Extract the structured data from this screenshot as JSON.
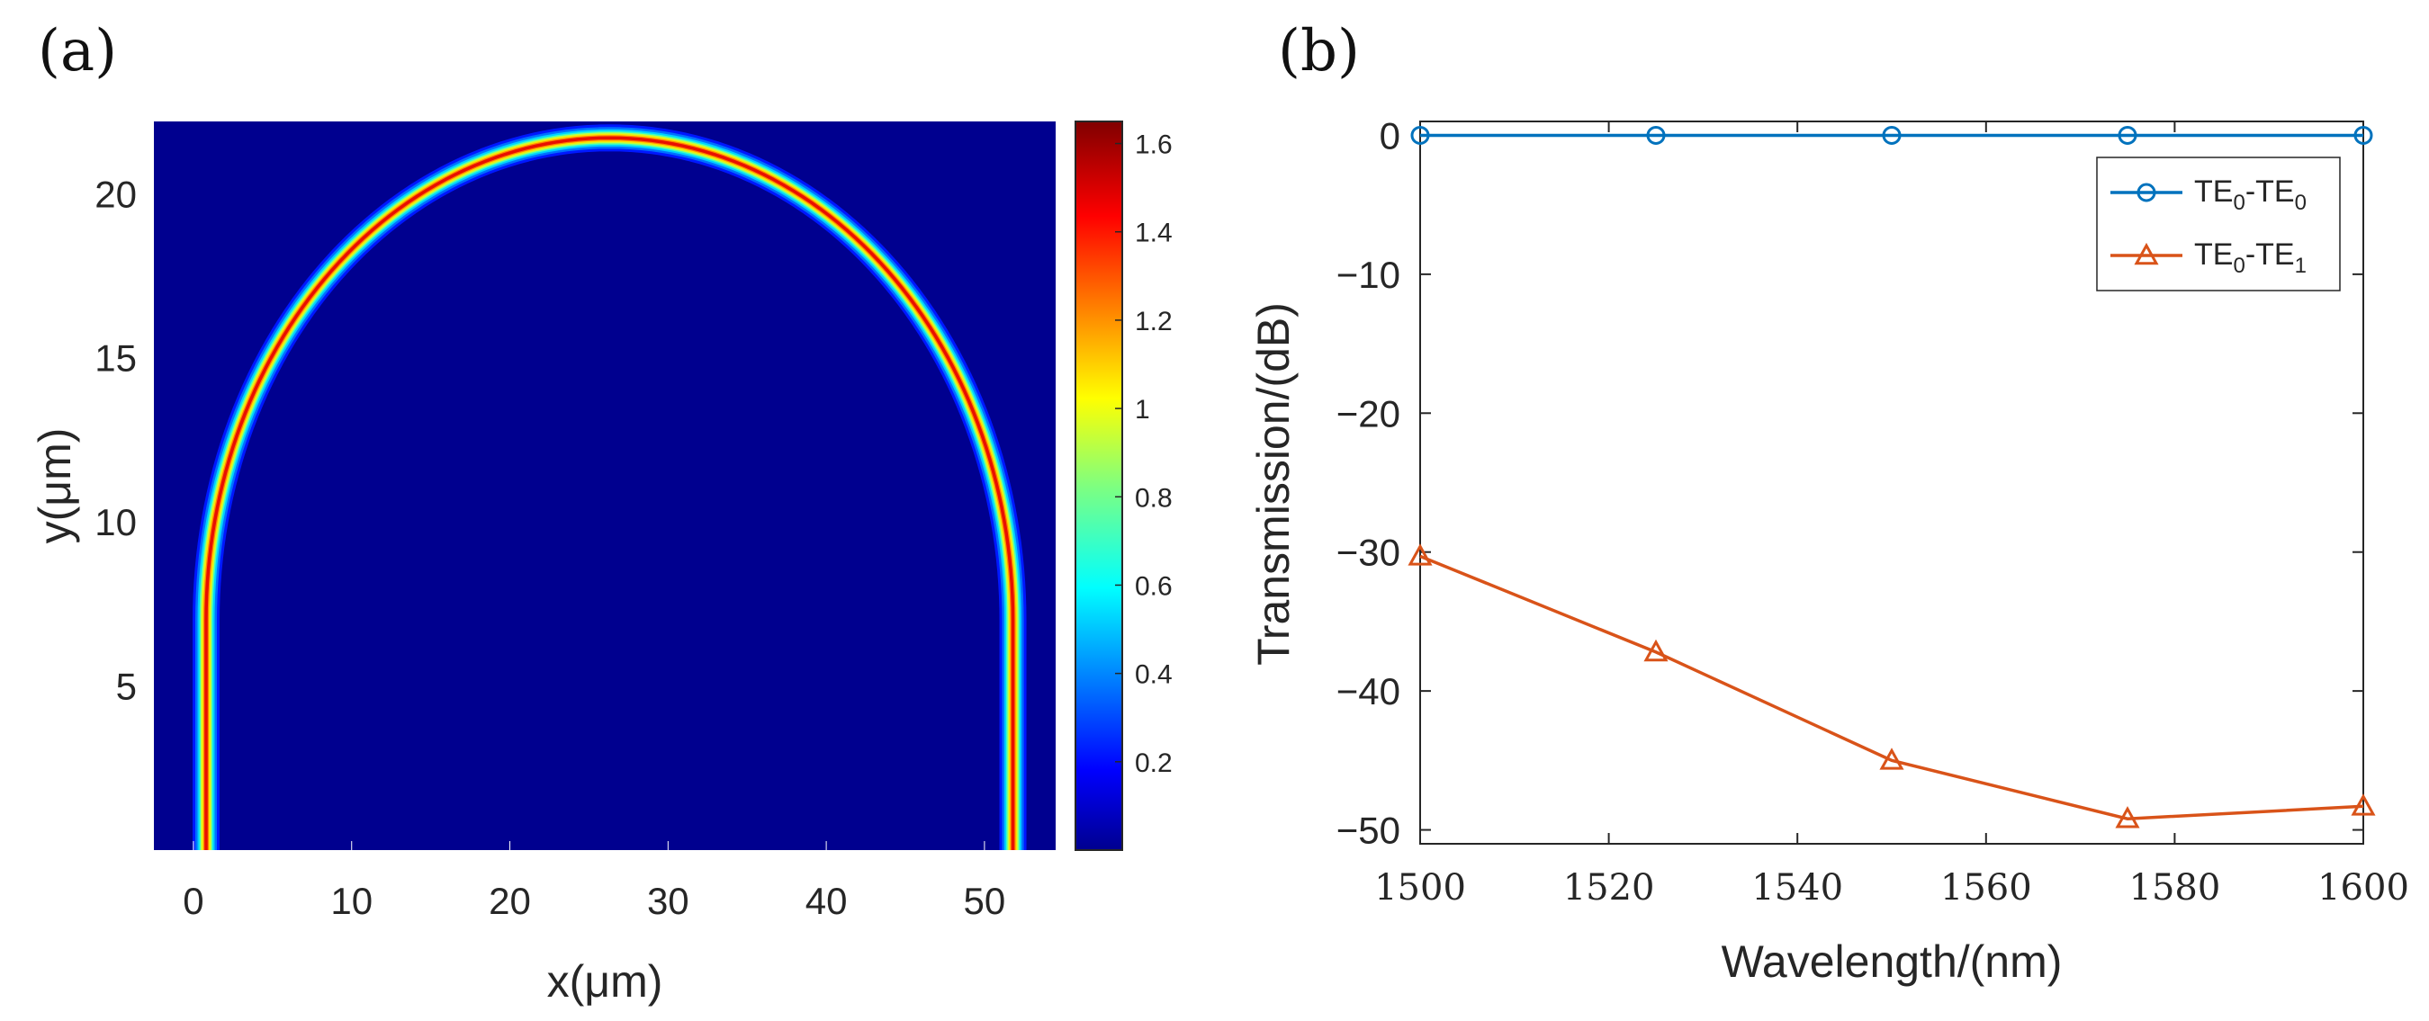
{
  "chart_data": [
    {
      "id": "a",
      "type": "heatmap",
      "panel_label": "(a)",
      "title": "",
      "xlabel": "x(μm)",
      "ylabel": "y(μm)",
      "xlim": [
        -2.5,
        54.5
      ],
      "ylim": [
        0,
        22.2
      ],
      "xticks": [
        0,
        10,
        20,
        30,
        40,
        50
      ],
      "xtick_labels": [
        "0",
        "10",
        "20",
        "30",
        "40",
        "50"
      ],
      "yticks": [
        5,
        10,
        15,
        20
      ],
      "ytick_labels": [
        "5",
        "10",
        "15",
        "20"
      ],
      "colormap": "jet",
      "colorbar": {
        "range": [
          0,
          1.65
        ],
        "ticks": [
          0.2,
          0.4,
          0.6,
          0.8,
          1.0,
          1.2,
          1.4,
          1.6
        ],
        "tick_labels": [
          "0.2",
          "0.4",
          "0.6",
          "0.8",
          "1",
          "1.2",
          "1.4",
          "1.6"
        ]
      },
      "field": {
        "description_free": true,
        "shape": "semi-elliptical bend waveguide",
        "left_leg_x": 0.8,
        "right_leg_x": 51.8,
        "straight_top_y": 7,
        "apex_y": 21.7,
        "apex_x_range": [
          25,
          28
        ],
        "peak_value": 1.65
      }
    },
    {
      "id": "b",
      "type": "line",
      "panel_label": "(b)",
      "title": "",
      "xlabel": "Wavelength/(nm)",
      "ylabel": "Transmission/(dB)",
      "xlim": [
        1500,
        1600
      ],
      "ylim": [
        -51,
        1
      ],
      "xticks": [
        1500,
        1520,
        1540,
        1560,
        1580,
        1600
      ],
      "xtick_labels": [
        "1500",
        "1520",
        "1540",
        "1560",
        "1580",
        "1600"
      ],
      "yticks": [
        0,
        -10,
        -20,
        -30,
        -40,
        -50
      ],
      "ytick_labels": [
        "0",
        "−10",
        "−20",
        "−30",
        "−40",
        "−50"
      ],
      "legend_position": "top-right",
      "x": [
        1500,
        1525,
        1550,
        1575,
        1600
      ],
      "series": [
        {
          "name": "TE0-TE0",
          "label_parts": [
            "TE",
            "0",
            "-TE",
            "0"
          ],
          "color": "#0072BD",
          "marker": "circle",
          "values": [
            0,
            0,
            0,
            0,
            0
          ]
        },
        {
          "name": "TE0-TE1",
          "label_parts": [
            "TE",
            "0",
            "-TE",
            "1"
          ],
          "color": "#D95319",
          "marker": "triangle",
          "values": [
            -30.3,
            -37.2,
            -45,
            -49.2,
            -48.3
          ]
        }
      ]
    }
  ]
}
